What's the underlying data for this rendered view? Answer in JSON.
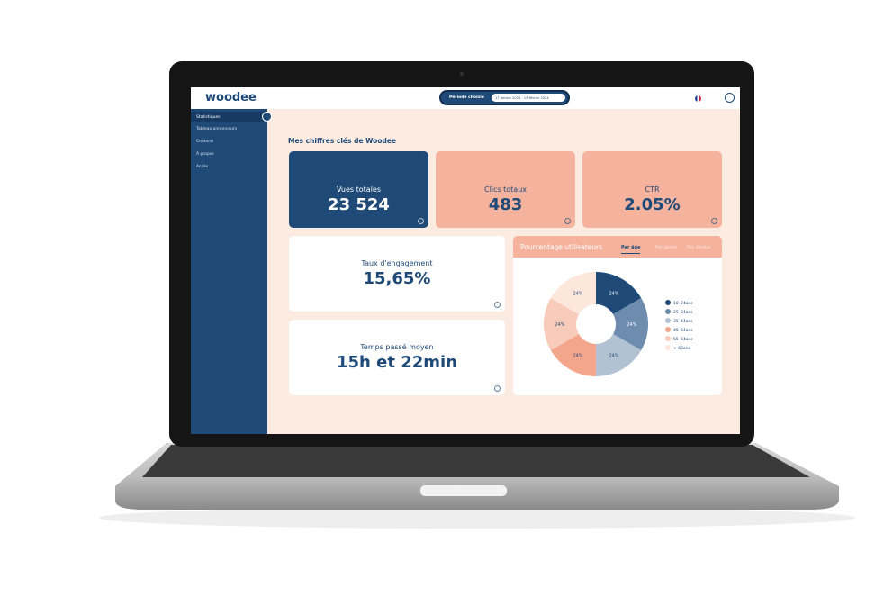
{
  "header": {
    "logo": "woodee",
    "period_label": "Période choisie",
    "period_value": "17 janvier 2024 - 15 février 2024"
  },
  "sidebar": {
    "items": [
      "Statistiques",
      "Tableau annonceurs",
      "Contenu",
      "À propos",
      "Accès"
    ]
  },
  "main": {
    "title": "Mes chiffres clés de Woodee",
    "cards": [
      {
        "label": "Vues totales",
        "value": "23 524"
      },
      {
        "label": "Clics totaux",
        "value": "483"
      },
      {
        "label": "CTR",
        "value": "2.05%"
      },
      {
        "label": "Taux d'engagement",
        "value": "15,65%"
      },
      {
        "label": "Temps passé moyen",
        "value": "15h et 22min"
      }
    ],
    "pie_card": {
      "title": "Pourcentage utilisateurs",
      "tabs": [
        "Par âge",
        "Par genre",
        "Par device"
      ]
    }
  },
  "chart_data": {
    "type": "donut",
    "categories": [
      "18–24ans",
      "25–34ans",
      "35–44ans",
      "45–54ans",
      "55–64ans",
      "+ 65ans"
    ],
    "values": [
      24,
      24,
      24,
      24,
      24,
      24
    ],
    "value_labels": [
      "24%",
      "24%",
      "24%",
      "24%",
      "24%",
      "24%"
    ],
    "colors": [
      "#1f4a78",
      "#6d8cae",
      "#b3c2d3",
      "#f4a68d",
      "#f8cbbb",
      "#fde6dc"
    ]
  }
}
